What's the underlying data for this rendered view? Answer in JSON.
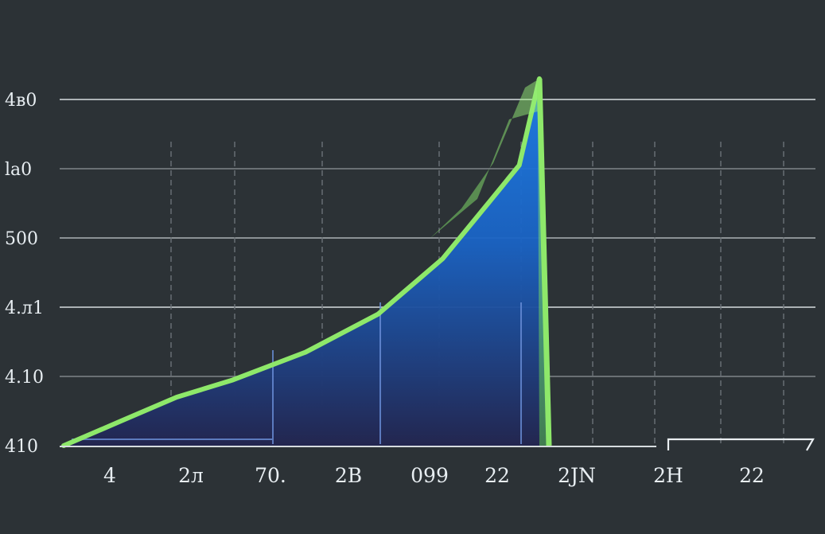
{
  "colors": {
    "background": "#2c3236",
    "grid_major": "#c3c9cc",
    "grid_minor": "#6a7176",
    "line": "#8ee86a",
    "fill_top": "#1e7fe8",
    "fill_bottom": "#23264f",
    "axis": "#d6dcdf"
  },
  "chart_data": {
    "type": "area",
    "title": "",
    "xlabel": "",
    "ylabel": "",
    "grid": true,
    "legend": "none",
    "y_tick_labels": [
      "410",
      "4.10",
      "4.л1",
      "500",
      "lа0",
      "4в0"
    ],
    "x_tick_labels": [
      "4",
      "2л",
      "70.",
      "2B",
      "099",
      "22",
      "2ЈN",
      "2H",
      "22"
    ],
    "series": [
      {
        "points": [
          [
            0.0,
            0.0
          ],
          [
            0.7,
            0.35
          ],
          [
            1.4,
            0.7
          ],
          [
            2.1,
            0.95
          ],
          [
            3.0,
            1.35
          ],
          [
            3.9,
            1.9
          ],
          [
            4.7,
            2.7
          ],
          [
            5.3,
            3.55
          ],
          [
            5.65,
            4.05
          ],
          [
            5.9,
            5.3
          ]
        ]
      }
    ]
  }
}
